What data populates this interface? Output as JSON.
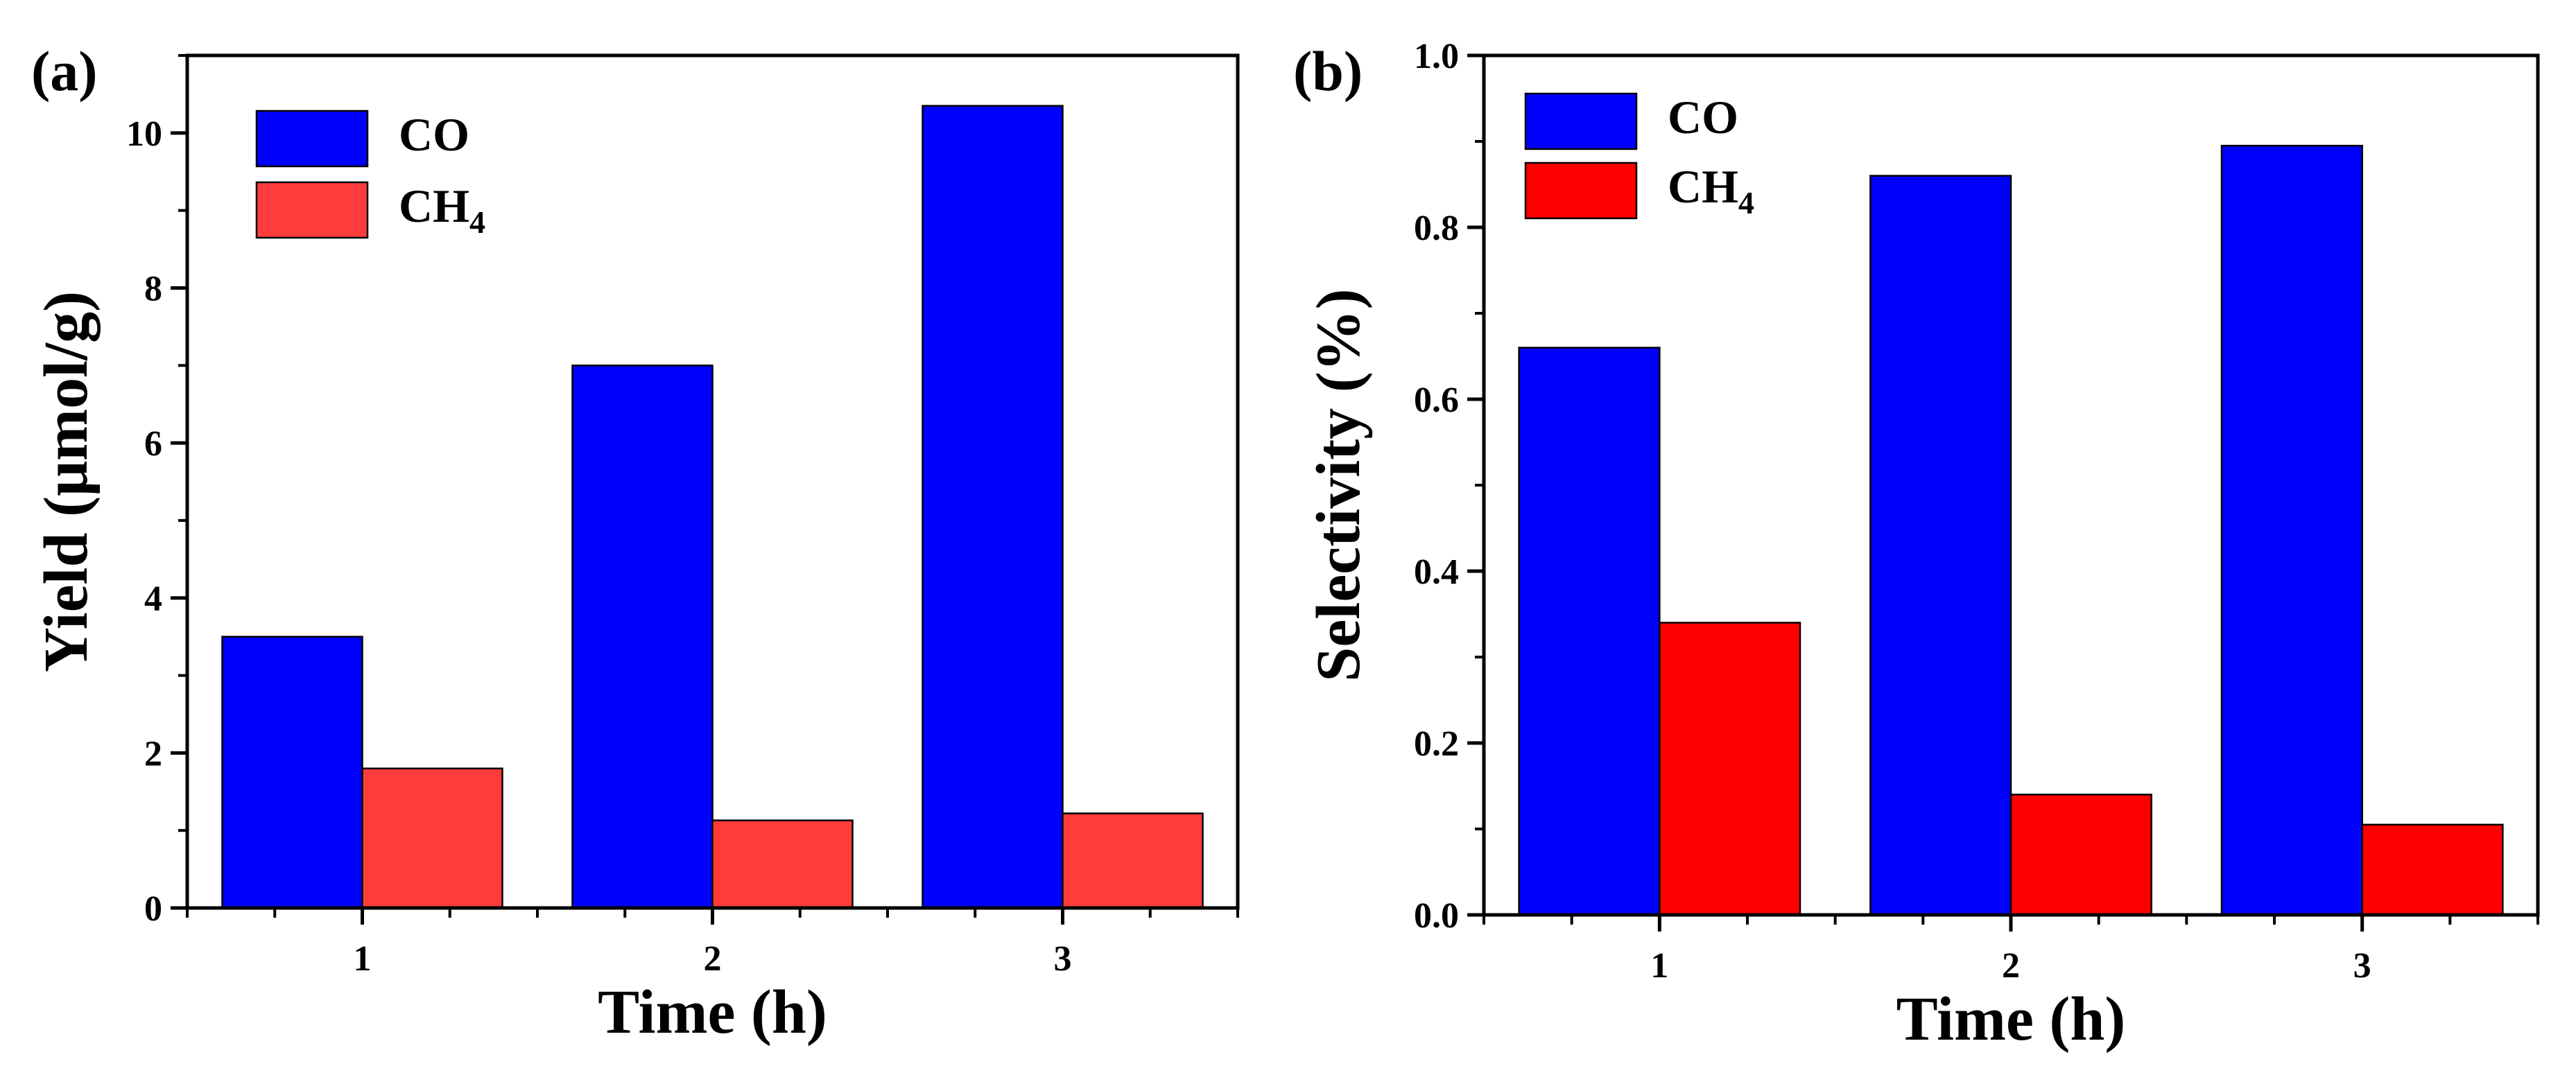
{
  "chart_data": [
    {
      "type": "bar",
      "panel_label": "(a)",
      "categories": [
        "1",
        "2",
        "3"
      ],
      "series": [
        {
          "name": "CO",
          "name_base": "CO",
          "name_sub": "",
          "color": "#0000ff",
          "values": [
            3.5,
            7.0,
            10.35
          ]
        },
        {
          "name": "CH4",
          "name_base": "CH",
          "name_sub": "4",
          "color": "#ff3c3c",
          "values": [
            1.8,
            1.13,
            1.22
          ]
        }
      ],
      "title": "",
      "xlabel": "Time (h)",
      "ylabel": "Yield (μmol/g)",
      "ylim": [
        0,
        11
      ],
      "yticks": [
        0,
        2,
        4,
        6,
        8,
        10
      ],
      "ytick_labels": [
        "0",
        "2",
        "4",
        "6",
        "8",
        "10"
      ],
      "yminor_step": 1,
      "legend_position": "top-left"
    },
    {
      "type": "bar",
      "panel_label": "(b)",
      "categories": [
        "1",
        "2",
        "3"
      ],
      "series": [
        {
          "name": "CO",
          "name_base": "CO",
          "name_sub": "",
          "color": "#0000ff",
          "values": [
            0.66,
            0.86,
            0.895
          ]
        },
        {
          "name": "CH4",
          "name_base": "CH",
          "name_sub": "4",
          "color": "#ff0000",
          "values": [
            0.34,
            0.14,
            0.105
          ]
        }
      ],
      "title": "",
      "xlabel": "Time (h)",
      "ylabel": "Selectivity (%)",
      "ylim": [
        0,
        1.0
      ],
      "yticks": [
        0,
        0.2,
        0.4,
        0.6,
        0.8,
        1.0
      ],
      "ytick_labels": [
        "0.0",
        "0.2",
        "0.4",
        "0.6",
        "0.8",
        "1.0"
      ],
      "yminor_step": 0.1,
      "legend_position": "top-left"
    }
  ]
}
